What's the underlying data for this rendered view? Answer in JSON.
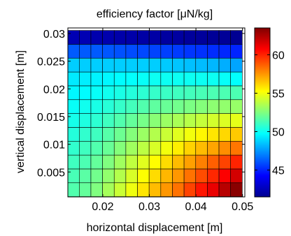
{
  "chart_data": {
    "type": "heatmap",
    "title": "efficiency factor [μN/kg]",
    "xlabel": "horizontal displacement [m]",
    "ylabel": "vertical displacement [m]",
    "xlim": [
      0.0125,
      0.0505
    ],
    "ylim": [
      0.0005,
      0.031
    ],
    "x_ticks": [
      0.02,
      0.03,
      0.04,
      0.05
    ],
    "x_tick_labels": [
      "0.02",
      "0.03",
      "0.04",
      "0.05"
    ],
    "y_ticks": [
      0.005,
      0.01,
      0.015,
      0.02,
      0.025,
      0.03
    ],
    "y_tick_labels": [
      "0.005",
      "0.01",
      "0.015",
      "0.02",
      "0.025",
      "0.03"
    ],
    "x_centers": [
      0.0137,
      0.0162,
      0.0187,
      0.0212,
      0.0237,
      0.0262,
      0.0287,
      0.0312,
      0.0337,
      0.0362,
      0.0387,
      0.0412,
      0.0437,
      0.0462,
      0.0487
    ],
    "y_centers": [
      0.0018,
      0.0043,
      0.0068,
      0.0093,
      0.0118,
      0.0143,
      0.0168,
      0.0193,
      0.0218,
      0.0243,
      0.0268,
      0.0293
    ],
    "values_note_rows": "bottom row first (y ascending)",
    "values": [
      [
        51.5,
        51.9,
        52.5,
        53.3,
        54.1,
        54.9,
        55.8,
        56.7,
        57.5,
        58.3,
        59.3,
        60.3,
        61.2,
        62.3,
        63.3
      ],
      [
        51.3,
        51.7,
        52.2,
        52.9,
        53.6,
        54.4,
        55.2,
        56.0,
        56.8,
        57.5,
        58.3,
        59.1,
        59.9,
        60.8,
        61.7
      ],
      [
        51.1,
        51.4,
        51.9,
        52.5,
        53.2,
        53.9,
        54.6,
        55.3,
        56.0,
        56.7,
        57.3,
        58.0,
        58.7,
        59.3,
        60.0
      ],
      [
        50.8,
        51.1,
        51.5,
        52.0,
        52.6,
        53.2,
        53.8,
        54.4,
        55.0,
        55.6,
        56.2,
        56.7,
        57.2,
        57.7,
        58.2
      ],
      [
        50.5,
        50.8,
        51.1,
        51.6,
        52.1,
        52.6,
        53.1,
        53.6,
        54.1,
        54.6,
        55.0,
        55.4,
        55.8,
        56.1,
        56.4
      ],
      [
        50.2,
        50.4,
        50.7,
        51.1,
        51.5,
        51.9,
        52.3,
        52.7,
        53.1,
        53.4,
        53.7,
        54.0,
        54.3,
        54.5,
        54.7
      ],
      [
        49.9,
        50.1,
        50.3,
        50.6,
        50.9,
        51.2,
        51.5,
        51.8,
        52.0,
        52.2,
        52.4,
        52.6,
        52.8,
        52.9,
        53.0
      ],
      [
        49.6,
        49.7,
        49.9,
        50.1,
        50.3,
        50.5,
        50.7,
        50.9,
        51.0,
        51.1,
        51.2,
        51.3,
        51.4,
        51.4,
        51.4
      ],
      [
        49.3,
        49.4,
        49.5,
        49.6,
        49.7,
        49.8,
        49.9,
        50.0,
        50.0,
        50.0,
        50.0,
        50.0,
        50.0,
        49.9,
        49.8
      ],
      [
        48.7,
        48.7,
        48.7,
        48.7,
        48.7,
        48.7,
        48.7,
        48.7,
        48.6,
        48.5,
        48.4,
        48.3,
        48.2,
        48.0,
        47.8
      ],
      [
        46.2,
        46.2,
        46.2,
        46.1,
        46.0,
        45.9,
        45.8,
        45.7,
        45.6,
        45.5,
        45.4,
        45.3,
        45.2,
        45.1,
        45.0
      ],
      [
        42.6,
        42.6,
        42.5,
        42.5,
        42.4,
        42.4,
        42.3,
        42.3,
        42.2,
        42.2,
        42.1,
        42.1,
        42.0,
        42.0,
        41.9
      ]
    ],
    "colormap": "jet",
    "clim": [
      41.5,
      63.5
    ],
    "colorbar": {
      "ticks": [
        45,
        50,
        55,
        60
      ],
      "tick_labels": [
        "45",
        "50",
        "55",
        "60"
      ]
    },
    "grid": false,
    "cell_edge_color": "#000000"
  }
}
